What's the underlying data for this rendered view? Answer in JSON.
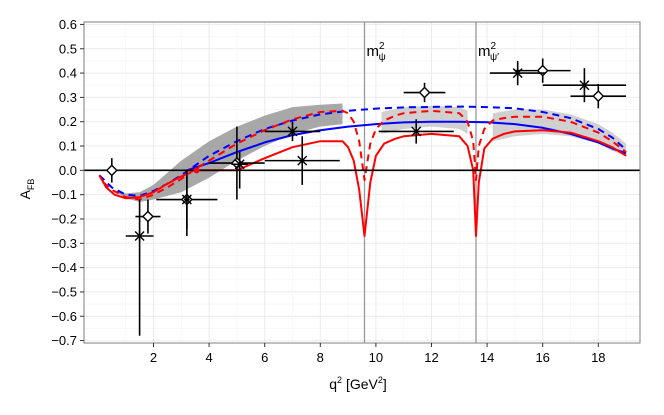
{
  "chart_data": {
    "type": "line",
    "xlabel": "q² [GeV²]",
    "xlabel_main": "q",
    "xlabel_sup": "2",
    "xlabel_unit": "[GeV",
    "xlabel_unit_sup": "2",
    "xlabel_close": "]",
    "ylabel": "A_FB",
    "ylabel_main": "A",
    "ylabel_sub": "FB",
    "xlim": [
      -0.5,
      19.5
    ],
    "ylim": [
      -0.71,
      0.61
    ],
    "xticks": [
      2,
      4,
      6,
      8,
      10,
      12,
      14,
      16,
      18
    ],
    "xtick_labels": [
      "2",
      "4",
      "6",
      "8",
      "10",
      "12",
      "14",
      "16",
      "18"
    ],
    "yticks": [
      -0.7,
      -0.6,
      -0.5,
      -0.4,
      -0.3,
      -0.2,
      -0.1,
      0.0,
      0.1,
      0.2,
      0.3,
      0.4,
      0.5,
      0.6
    ],
    "ytick_labels": [
      "−0.7",
      "−0.6",
      "−0.5",
      "−0.4",
      "−0.3",
      "−0.2",
      "−0.1",
      "0.0",
      "0.1",
      "0.2",
      "0.3",
      "0.4",
      "0.5",
      "0.6"
    ],
    "grid": true,
    "vlines": [
      {
        "x": 9.59,
        "label": "m",
        "sup": "2",
        "sub": "ψ"
      },
      {
        "x": 13.6,
        "label": "m",
        "sup": "2",
        "sub": "ψ′"
      }
    ],
    "zero_line": 0.0,
    "colors": {
      "blue": "#0000ff",
      "red": "#ff0000",
      "band": "#999999",
      "band_light": "#c8c8c8",
      "grid": "#ebebeb",
      "vline": "#999999",
      "data": "#000000"
    },
    "series": [
      {
        "name": "blue-dashed",
        "style": "dashed",
        "color": "#0000ff",
        "x": [
          0.05,
          0.5,
          1.0,
          1.5,
          2.0,
          2.5,
          3.0,
          3.5,
          4.0,
          5.0,
          6.0,
          7.0,
          8.0,
          9.0,
          10.0,
          11.0,
          12.0,
          13.0,
          14.0,
          15.0,
          16.0,
          17.0,
          18.0,
          18.5,
          19.0
        ],
        "y": [
          -0.02,
          -0.07,
          -0.1,
          -0.105,
          -0.085,
          -0.055,
          -0.02,
          0.02,
          0.06,
          0.12,
          0.17,
          0.205,
          0.23,
          0.245,
          0.254,
          0.259,
          0.261,
          0.262,
          0.26,
          0.255,
          0.24,
          0.215,
          0.17,
          0.135,
          0.085
        ]
      },
      {
        "name": "blue-solid",
        "style": "solid",
        "color": "#0000ff",
        "x": [
          3.2,
          4.0,
          5.0,
          6.0,
          7.0,
          8.0,
          9.0,
          10.0,
          11.0,
          12.0,
          13.0,
          14.0,
          15.0,
          16.0,
          17.0,
          18.0,
          18.5,
          19.0
        ],
        "y": [
          0.0,
          0.03,
          0.075,
          0.115,
          0.145,
          0.165,
          0.18,
          0.19,
          0.197,
          0.2,
          0.2,
          0.198,
          0.19,
          0.175,
          0.15,
          0.115,
          0.09,
          0.07
        ]
      },
      {
        "name": "red-dashed",
        "style": "dashed",
        "color": "#ff0000",
        "x": [
          0.2,
          0.5,
          1.0,
          1.5,
          2.0,
          2.5,
          3.0,
          3.5,
          4.0,
          5.0,
          6.0,
          7.0,
          8.0,
          8.8,
          9.0,
          9.2,
          9.4,
          9.59,
          9.8,
          10.0,
          10.3,
          10.7,
          11.0,
          12.0,
          13.0,
          13.3,
          13.5,
          13.6,
          13.7,
          13.9,
          14.2,
          14.6,
          15.0,
          16.0,
          17.0,
          18.0,
          18.5,
          19.0
        ],
        "y": [
          -0.05,
          -0.08,
          -0.11,
          -0.12,
          -0.1,
          -0.07,
          -0.035,
          0.005,
          0.04,
          0.11,
          0.165,
          0.21,
          0.24,
          0.245,
          0.235,
          0.2,
          0.12,
          -0.04,
          0.11,
          0.17,
          0.205,
          0.225,
          0.235,
          0.245,
          0.235,
          0.2,
          0.12,
          -0.04,
          0.1,
          0.17,
          0.205,
          0.215,
          0.22,
          0.22,
          0.2,
          0.155,
          0.12,
          0.075
        ]
      },
      {
        "name": "red-solid",
        "style": "solid",
        "color": "#ff0000",
        "x": [
          0.05,
          0.3,
          0.6,
          1.0,
          1.5,
          2.0,
          2.5,
          3.0,
          3.2,
          3.2,
          3.6,
          4.0,
          4.5,
          5.0,
          6.0,
          7.0,
          8.0,
          8.8,
          9.0,
          9.2,
          9.4,
          9.59,
          9.8,
          10.0,
          10.3,
          10.7,
          11.0,
          12.0,
          13.0,
          13.3,
          13.5,
          13.6,
          13.7,
          13.9,
          14.2,
          14.6,
          15.0,
          16.0,
          17.0,
          18.0,
          18.5,
          19.0
        ],
        "y": [
          -0.02,
          -0.07,
          -0.1,
          -0.115,
          -0.11,
          -0.09,
          -0.055,
          -0.025,
          -0.015,
          0.0,
          0.0,
          0.0,
          0.0,
          0.0,
          0.05,
          0.095,
          0.12,
          0.12,
          0.095,
          0.04,
          -0.08,
          -0.27,
          -0.05,
          0.06,
          0.11,
          0.13,
          0.14,
          0.15,
          0.14,
          0.1,
          0.0,
          -0.27,
          -0.05,
          0.09,
          0.13,
          0.15,
          0.16,
          0.165,
          0.155,
          0.12,
          0.095,
          0.06
        ]
      }
    ],
    "bands": [
      {
        "name": "band-main",
        "color": "#999999",
        "x": [
          0.5,
          1.0,
          1.5,
          2.0,
          3.0,
          4.0,
          5.0,
          6.0,
          7.0,
          8.0,
          8.8
        ],
        "upper": [
          -0.08,
          -0.095,
          -0.09,
          -0.06,
          0.04,
          0.12,
          0.18,
          0.225,
          0.26,
          0.27,
          0.275
        ],
        "lower": [
          -0.08,
          -0.115,
          -0.13,
          -0.12,
          -0.09,
          -0.03,
          0.04,
          0.1,
          0.15,
          0.18,
          0.19
        ]
      },
      {
        "name": "band-mid",
        "color": "#c8c8c8",
        "x": [
          10.2,
          11.0,
          12.0,
          13.0,
          13.3
        ],
        "upper": [
          0.24,
          0.26,
          0.265,
          0.26,
          0.245
        ],
        "lower": [
          0.15,
          0.17,
          0.18,
          0.17,
          0.15
        ]
      },
      {
        "name": "band-right",
        "color": "#c8c8c8",
        "x": [
          14.2,
          15.0,
          16.0,
          17.0,
          18.0,
          18.5,
          19.0
        ],
        "upper": [
          0.235,
          0.25,
          0.25,
          0.23,
          0.19,
          0.155,
          0.11
        ],
        "lower": [
          0.12,
          0.14,
          0.15,
          0.14,
          0.11,
          0.08,
          0.06
        ]
      }
    ],
    "points_diamond": [
      {
        "x": 0.5,
        "y": 0.0,
        "xerr": 0.0,
        "yerr_lo": 0.05,
        "yerr_hi": 0.05
      },
      {
        "x": 1.8,
        "y": -0.19,
        "xerr": 0.45,
        "yerr_lo": 0.07,
        "yerr_hi": 0.07
      },
      {
        "x": 3.2,
        "y": -0.12,
        "xerr": 1.1,
        "yerr_lo": 0.15,
        "yerr_hi": 0.1
      },
      {
        "x": 5.0,
        "y": 0.03,
        "xerr": 1.0,
        "yerr_lo": 0.15,
        "yerr_hi": 0.15
      },
      {
        "x": 11.75,
        "y": 0.32,
        "xerr": 0.75,
        "yerr_lo": 0.04,
        "yerr_hi": 0.04
      },
      {
        "x": 16.0,
        "y": 0.41,
        "xerr": 1.0,
        "yerr_lo": 0.05,
        "yerr_hi": 0.05
      },
      {
        "x": 18.0,
        "y": 0.305,
        "xerr": 1.0,
        "yerr_lo": 0.05,
        "yerr_hi": 0.05
      }
    ],
    "points_cross": [
      {
        "x": 1.5,
        "y": -0.27,
        "xerr": 0.5,
        "yerr_lo": 0.41,
        "yerr_hi": 0.15
      },
      {
        "x": 3.2,
        "y": -0.12,
        "xerr": 0.1,
        "yerr_lo": 0.12,
        "yerr_hi": 0.12
      },
      {
        "x": 5.1,
        "y": 0.025,
        "xerr": 0.3,
        "yerr_lo": 0.1,
        "yerr_hi": 0.05
      },
      {
        "x": 7.0,
        "y": 0.16,
        "xerr": 1.0,
        "yerr_lo": 0.04,
        "yerr_hi": 0.04
      },
      {
        "x": 7.35,
        "y": 0.04,
        "xerr": 1.35,
        "yerr_lo": 0.1,
        "yerr_hi": 0.1
      },
      {
        "x": 11.45,
        "y": 0.16,
        "xerr": 1.35,
        "yerr_lo": 0.05,
        "yerr_hi": 0.05
      },
      {
        "x": 15.1,
        "y": 0.4,
        "xerr": 1.0,
        "yerr_lo": 0.05,
        "yerr_hi": 0.05
      },
      {
        "x": 17.5,
        "y": 0.35,
        "xerr": 1.5,
        "yerr_lo": 0.07,
        "yerr_hi": 0.07
      }
    ],
    "small_marker": {
      "x": 3.55,
      "y": 0.0
    }
  }
}
